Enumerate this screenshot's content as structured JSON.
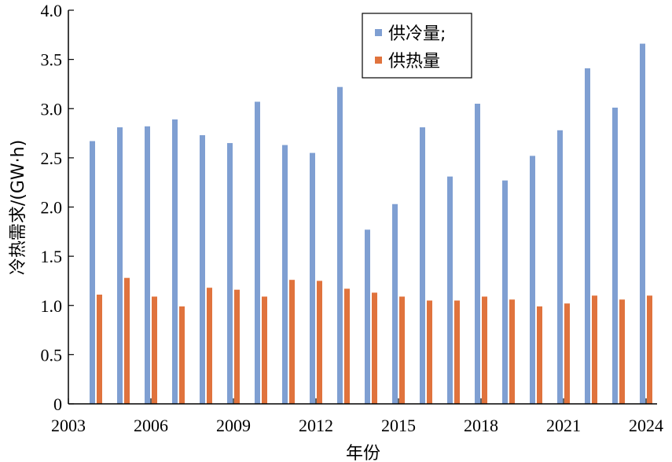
{
  "chart_data": {
    "type": "bar",
    "title": "",
    "xlabel": "年份",
    "ylabel": "冷热需求/(GW·h)",
    "xlim": [
      2003,
      2024.4
    ],
    "ylim": [
      0,
      4.0
    ],
    "xticks": [
      2003,
      2006,
      2009,
      2012,
      2015,
      2018,
      2021,
      2024
    ],
    "xtick_labels": [
      "2003",
      "2006",
      "2009",
      "2012",
      "2015",
      "2018",
      "2021",
      "2024"
    ],
    "yticks": [
      0,
      0.5,
      1.0,
      1.5,
      2.0,
      2.5,
      3.0,
      3.5,
      4.0
    ],
    "ytick_labels": [
      "0",
      "0.5",
      "1.0",
      "1.5",
      "2.0",
      "2.5",
      "3.0",
      "3.5",
      "4.0"
    ],
    "grid": false,
    "legend_position": "top-center",
    "categories": [
      2004,
      2005,
      2006,
      2007,
      2008,
      2009,
      2010,
      2011,
      2012,
      2013,
      2014,
      2015,
      2016,
      2017,
      2018,
      2019,
      2020,
      2021,
      2022,
      2023,
      2024
    ],
    "series": [
      {
        "name": "供冷量;",
        "color": "#7f9fd2",
        "values": [
          2.67,
          2.81,
          2.82,
          2.89,
          2.73,
          2.65,
          3.07,
          2.63,
          2.55,
          3.22,
          1.77,
          2.03,
          2.81,
          2.31,
          3.05,
          2.27,
          2.52,
          2.78,
          3.41,
          3.01,
          3.66
        ]
      },
      {
        "name": "供热量",
        "color": "#e0733d",
        "values": [
          1.11,
          1.28,
          1.09,
          0.99,
          1.18,
          1.16,
          1.09,
          1.26,
          1.25,
          1.17,
          1.13,
          1.09,
          1.05,
          1.05,
          1.09,
          1.06,
          0.99,
          1.02,
          1.1,
          1.06,
          1.1
        ]
      }
    ]
  }
}
